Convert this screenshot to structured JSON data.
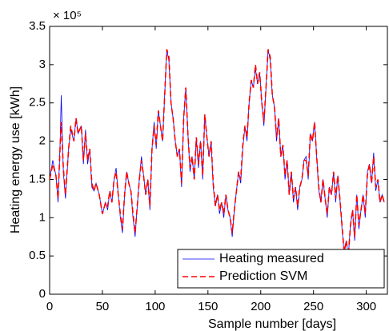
{
  "chart_data": {
    "type": "line",
    "annotation": "× 10⁵",
    "xlabel": "Sample number [days]",
    "ylabel": "Heating energy use [kWh]",
    "xlim": [
      0,
      320
    ],
    "xticks": [
      0,
      50,
      100,
      150,
      200,
      250,
      300
    ],
    "ylim": [
      0,
      3.5
    ],
    "yticks": [
      0,
      0.5,
      1,
      1.5,
      2,
      2.5,
      3,
      3.5
    ],
    "legend": "lower right",
    "x": [
      0,
      3,
      6,
      8,
      10,
      11,
      13,
      15,
      18,
      20,
      23,
      25,
      27,
      30,
      32,
      34,
      36,
      38,
      40,
      42,
      44,
      47,
      50,
      53,
      55,
      57,
      59,
      61,
      63,
      65,
      67,
      69,
      71,
      73,
      75,
      77,
      79,
      81,
      83,
      85,
      87,
      89,
      91,
      93,
      95,
      97,
      99,
      101,
      103,
      105,
      107,
      109,
      111,
      113,
      115,
      117,
      119,
      121,
      123,
      125,
      127,
      129,
      131,
      133,
      135,
      137,
      139,
      141,
      143,
      145,
      147,
      149,
      151,
      153,
      155,
      157,
      159,
      161,
      163,
      165,
      167,
      169,
      171,
      173,
      175,
      177,
      179,
      181,
      183,
      185,
      187,
      189,
      191,
      193,
      195,
      197,
      199,
      201,
      203,
      205,
      207,
      209,
      211,
      213,
      215,
      217,
      219,
      221,
      223,
      225,
      227,
      229,
      231,
      233,
      235,
      237,
      239,
      241,
      243,
      245,
      247,
      249,
      251,
      253,
      255,
      257,
      259,
      261,
      263,
      265,
      267,
      269,
      271,
      273,
      275,
      277,
      279,
      281,
      283,
      285,
      287,
      289,
      291,
      293,
      295,
      297,
      299,
      301,
      303,
      305,
      307,
      309,
      311,
      313,
      315,
      317
    ],
    "series": [
      {
        "name": "Heating measured",
        "color": "#0000ff",
        "dash": false,
        "values": [
          1.5,
          1.75,
          1.55,
          1.2,
          2.0,
          2.6,
          1.6,
          1.25,
          1.9,
          2.15,
          2.0,
          2.3,
          2.1,
          2.2,
          1.7,
          2.15,
          1.7,
          1.9,
          1.4,
          1.35,
          1.45,
          1.3,
          1.05,
          1.2,
          1.1,
          1.35,
          1.2,
          1.5,
          1.65,
          1.3,
          1.0,
          0.8,
          1.3,
          1.6,
          1.45,
          1.35,
          1.0,
          0.75,
          1.15,
          1.5,
          1.8,
          1.55,
          1.3,
          1.5,
          1.1,
          1.9,
          2.25,
          1.9,
          2.4,
          2.2,
          2.0,
          2.6,
          3.2,
          3.05,
          2.5,
          2.3,
          2.0,
          1.8,
          1.9,
          1.4,
          2.3,
          2.7,
          2.1,
          1.6,
          1.8,
          1.5,
          2.05,
          1.65,
          2.0,
          1.5,
          2.35,
          2.05,
          1.8,
          2.0,
          1.4,
          1.15,
          1.3,
          1.05,
          1.2,
          1.0,
          1.3,
          1.1,
          1.0,
          0.75,
          1.1,
          1.35,
          1.6,
          1.45,
          1.9,
          2.2,
          2.0,
          2.5,
          2.8,
          2.7,
          2.95,
          2.75,
          2.9,
          2.5,
          2.2,
          2.7,
          3.2,
          3.05,
          2.6,
          2.45,
          2.0,
          2.3,
          1.8,
          1.95,
          1.5,
          1.75,
          1.3,
          1.6,
          1.2,
          1.4,
          1.1,
          1.4,
          1.5,
          1.75,
          1.8,
          1.5,
          2.1,
          2.0,
          2.25,
          1.8,
          1.35,
          1.2,
          1.5,
          1.25,
          1.0,
          1.4,
          1.3,
          1.6,
          1.2,
          1.55,
          1.25,
          0.85,
          0.55,
          0.7,
          0.5,
          0.9,
          1.1,
          0.7,
          1.3,
          0.85,
          1.1,
          1.3,
          1.0,
          1.6,
          1.7,
          1.45,
          1.85,
          1.35,
          1.5,
          1.2,
          1.3,
          1.2
        ]
      },
      {
        "name": "Prediction SVM",
        "color": "#ff0000",
        "dash": true,
        "values": [
          1.5,
          1.7,
          1.55,
          1.25,
          1.95,
          2.25,
          1.65,
          1.3,
          1.9,
          2.2,
          2.0,
          2.3,
          2.1,
          2.2,
          1.75,
          2.1,
          1.75,
          1.9,
          1.45,
          1.35,
          1.45,
          1.3,
          1.05,
          1.2,
          1.15,
          1.35,
          1.2,
          1.5,
          1.6,
          1.3,
          1.05,
          0.85,
          1.3,
          1.6,
          1.45,
          1.35,
          1.05,
          0.8,
          1.15,
          1.5,
          1.75,
          1.55,
          1.3,
          1.5,
          1.15,
          1.9,
          2.2,
          1.95,
          2.4,
          2.2,
          2.0,
          2.6,
          3.2,
          3.1,
          2.5,
          2.3,
          2.0,
          1.8,
          1.9,
          1.45,
          2.3,
          2.7,
          2.1,
          1.65,
          1.8,
          1.5,
          2.05,
          1.7,
          2.0,
          1.55,
          2.35,
          2.05,
          1.8,
          2.0,
          1.45,
          1.15,
          1.3,
          1.1,
          1.2,
          1.05,
          1.3,
          1.1,
          1.0,
          0.8,
          1.1,
          1.35,
          1.6,
          1.5,
          1.95,
          2.2,
          2.05,
          2.5,
          2.8,
          2.7,
          3.0,
          2.75,
          2.9,
          2.5,
          2.25,
          2.7,
          3.2,
          3.1,
          2.6,
          2.45,
          2.05,
          2.3,
          1.8,
          1.95,
          1.55,
          1.75,
          1.3,
          1.6,
          1.25,
          1.4,
          1.15,
          1.4,
          1.5,
          1.75,
          1.75,
          1.55,
          2.1,
          2.0,
          2.25,
          1.8,
          1.4,
          1.2,
          1.5,
          1.25,
          1.05,
          1.4,
          1.3,
          1.6,
          1.25,
          1.55,
          1.25,
          0.9,
          0.55,
          0.7,
          0.5,
          0.9,
          1.1,
          0.75,
          1.3,
          0.9,
          1.1,
          1.3,
          1.05,
          1.55,
          1.7,
          1.45,
          1.8,
          1.4,
          1.5,
          1.2,
          1.3,
          1.2
        ]
      }
    ]
  }
}
